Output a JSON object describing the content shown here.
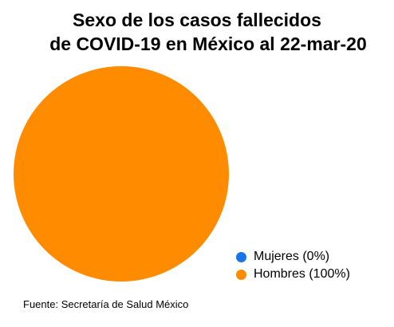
{
  "chart_data": {
    "type": "pie",
    "title": "Sexo de los casos fallecidos de COVID-19 en México al 22-mar-20",
    "title_lines": [
      "Sexo de los casos fallecidos",
      "de COVID-19 en México al 22-mar-20"
    ],
    "categories": [
      "Mujeres",
      "Hombres"
    ],
    "values": [
      0,
      100
    ],
    "unit": "%",
    "colors": [
      "#1a73e8",
      "#ff8c00"
    ],
    "legend_labels": [
      "Mujeres (0%)",
      "Hombres (100%)"
    ],
    "legend_position": "bottom-right",
    "source": "Fuente: Secretaría de Salud México"
  }
}
